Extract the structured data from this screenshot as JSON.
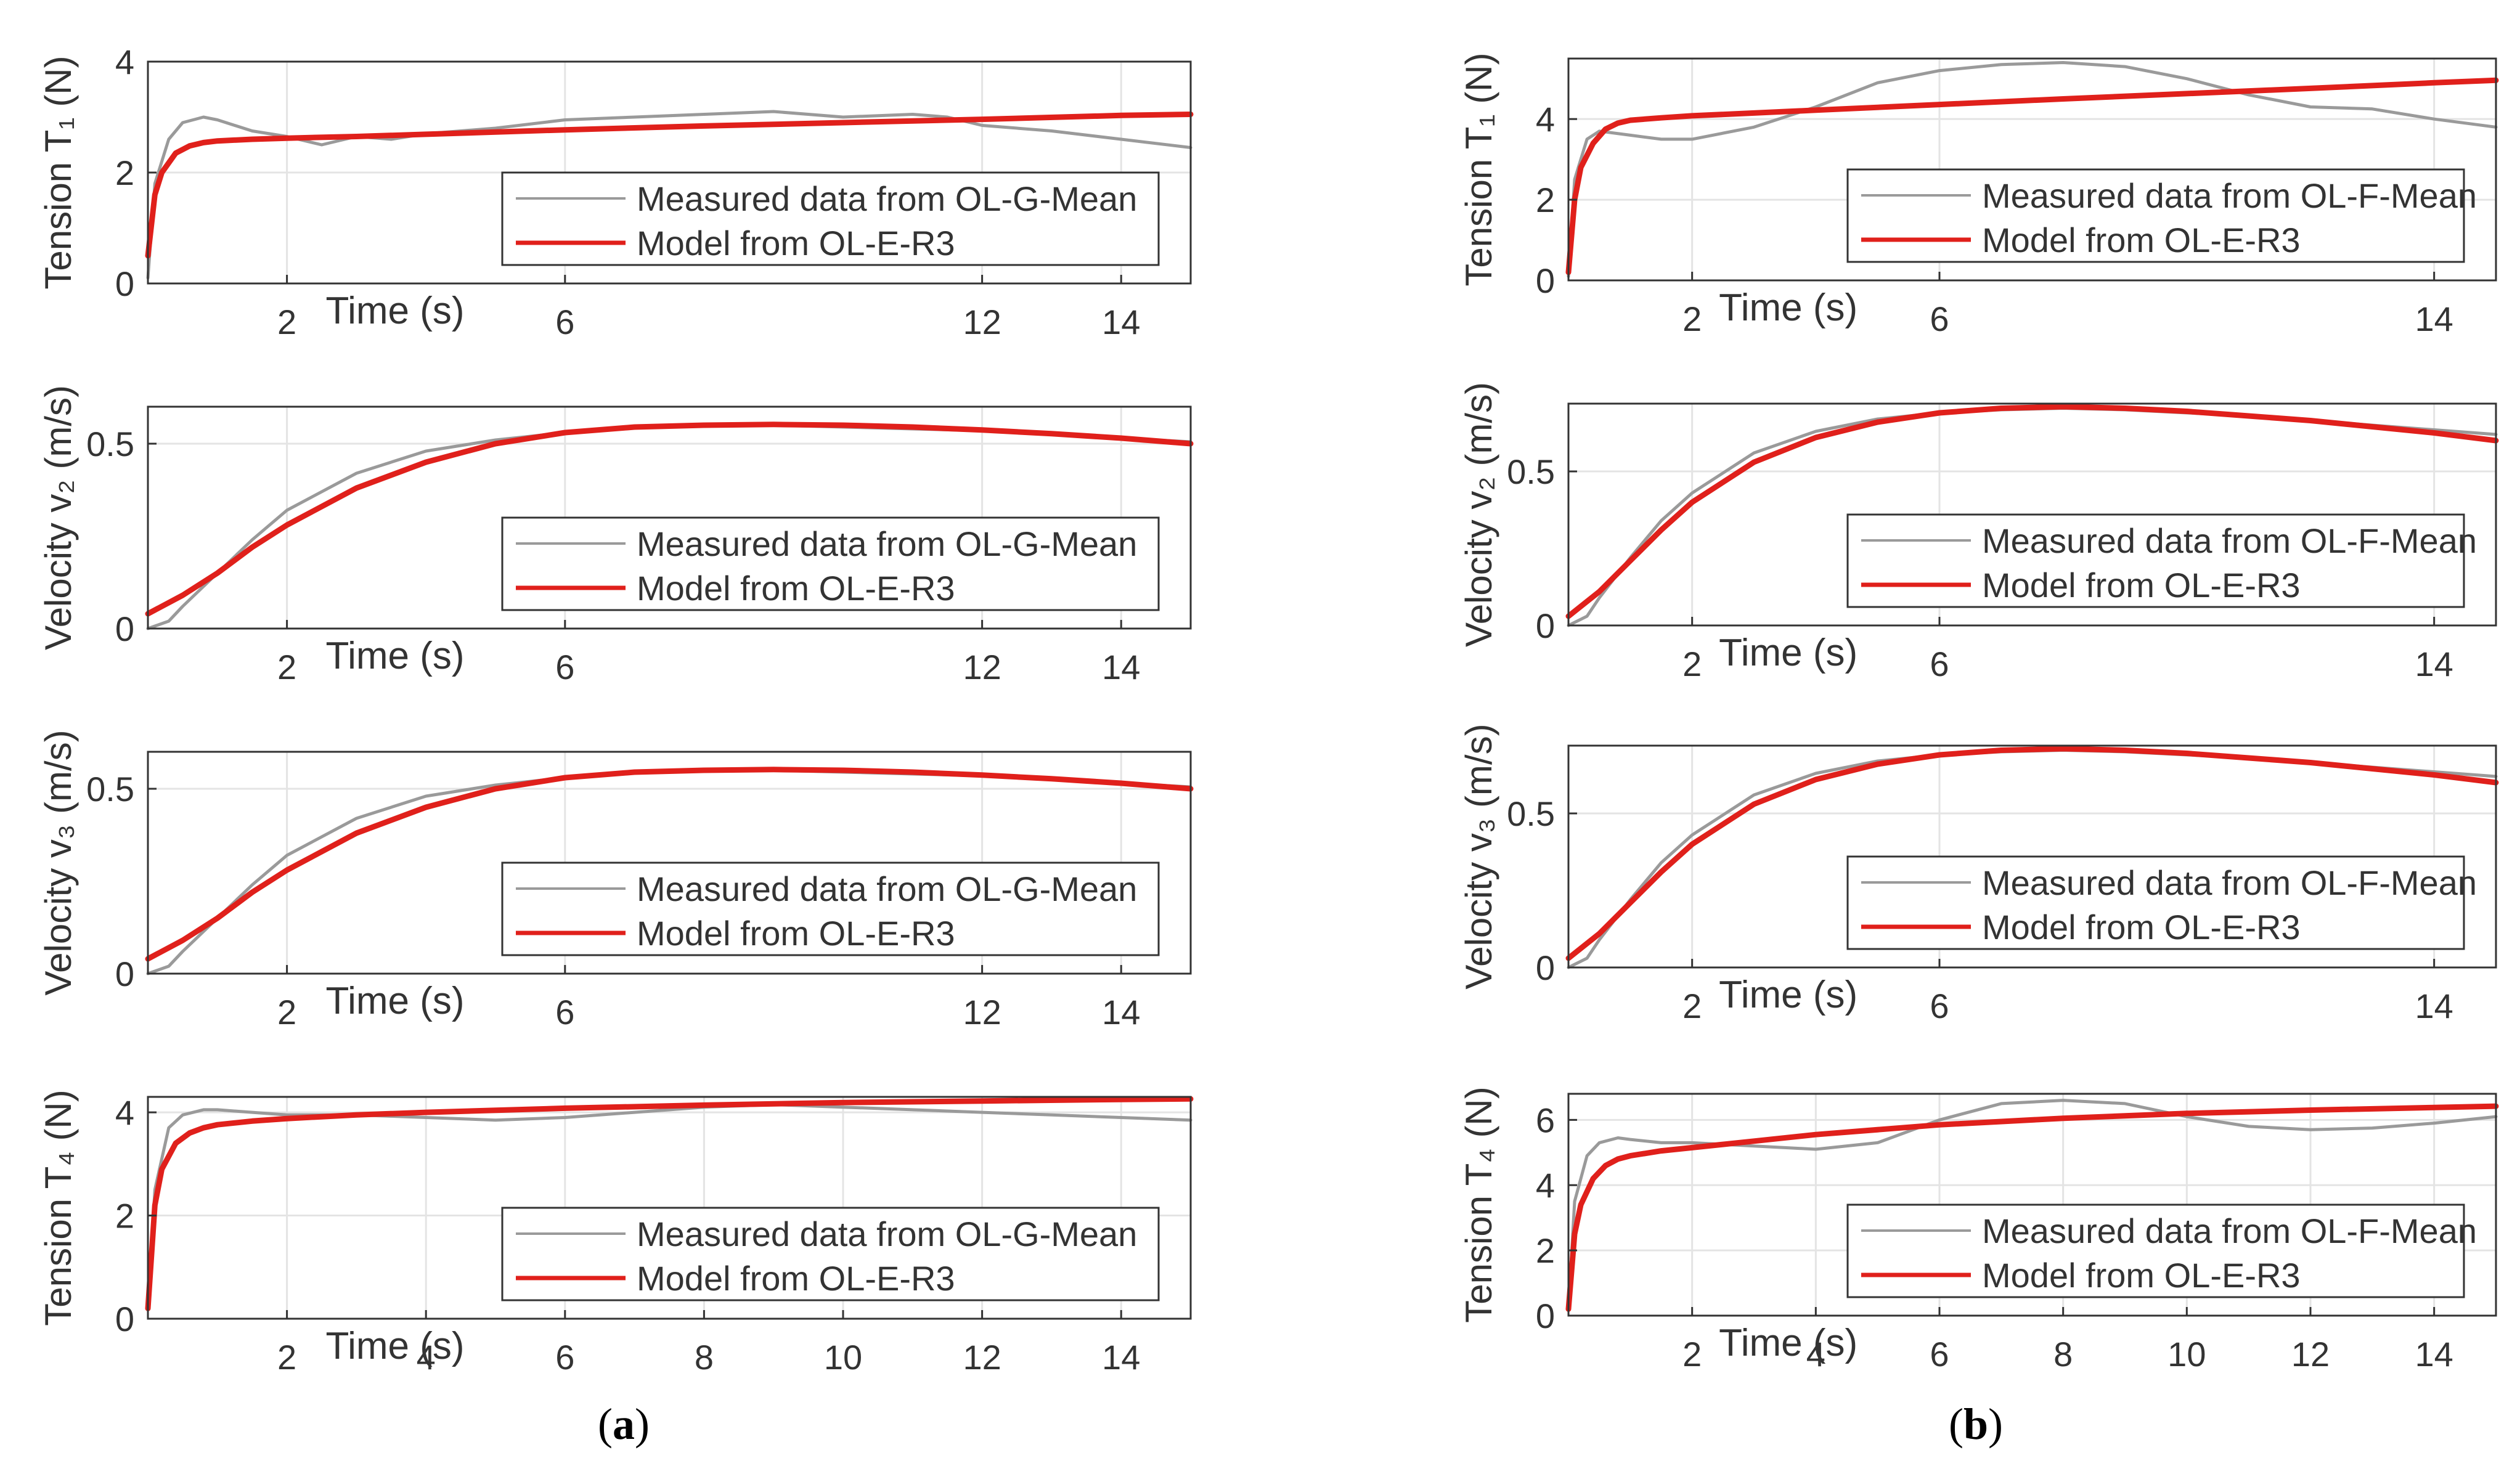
{
  "colors": {
    "measured": "#9a9a9a",
    "model": "#e0201b",
    "axis": "#333333",
    "grid": "#e4e4e4",
    "text": "#333333"
  },
  "panel_labels": {
    "a": "a",
    "b": "b"
  },
  "chart_data": [
    {
      "id": "a1",
      "type": "line",
      "ylabel": "Tension T₁ (N)",
      "xlabel": "Time (s)",
      "xlim": [
        0,
        15
      ],
      "ylim": [
        0,
        4
      ],
      "xticks": [
        2,
        6,
        12,
        14
      ],
      "yticks": [
        0,
        2,
        4
      ],
      "series": [
        {
          "name": "Measured data from OL-G-Mean",
          "x": [
            0,
            0.1,
            0.3,
            0.5,
            0.8,
            1.0,
            1.5,
            2.0,
            2.5,
            3.0,
            3.5,
            4.0,
            5.0,
            6.0,
            7.0,
            8.0,
            9.0,
            10.0,
            11.0,
            11.5,
            12.0,
            13.0,
            14.0,
            15.0
          ],
          "y": [
            0.1,
            1.8,
            2.6,
            2.9,
            3.0,
            2.95,
            2.75,
            2.65,
            2.5,
            2.65,
            2.6,
            2.7,
            2.8,
            2.95,
            3.0,
            3.05,
            3.1,
            3.0,
            3.05,
            3.0,
            2.85,
            2.75,
            2.6,
            2.45
          ]
        },
        {
          "name": "Model from OL-E-R3",
          "x": [
            0,
            0.1,
            0.2,
            0.4,
            0.6,
            0.8,
            1.0,
            1.5,
            2.0,
            3.0,
            4.0,
            6.0,
            8.0,
            10.0,
            12.0,
            14.0,
            15.0
          ],
          "y": [
            0.5,
            1.6,
            2.0,
            2.35,
            2.48,
            2.54,
            2.57,
            2.6,
            2.62,
            2.65,
            2.69,
            2.77,
            2.84,
            2.9,
            2.96,
            3.03,
            3.05
          ]
        }
      ]
    },
    {
      "id": "a2",
      "type": "line",
      "ylabel": "Velocity v₂ (m/s)",
      "xlabel": "Time (s)",
      "xlim": [
        0,
        15
      ],
      "ylim": [
        0,
        0.6
      ],
      "xticks": [
        2,
        6,
        12,
        14
      ],
      "yticks": [
        0,
        0.5
      ],
      "series": [
        {
          "name": "Measured data from OL-G-Mean",
          "x": [
            0,
            0.3,
            0.5,
            1.0,
            1.5,
            2.0,
            3.0,
            4.0,
            5.0,
            6.0,
            7.0,
            8.0,
            9.0,
            10.0,
            11.0,
            12.0,
            13.0,
            14.0,
            15.0
          ],
          "y": [
            0,
            0.02,
            0.06,
            0.15,
            0.24,
            0.32,
            0.42,
            0.48,
            0.51,
            0.53,
            0.545,
            0.55,
            0.55,
            0.545,
            0.54,
            0.535,
            0.525,
            0.515,
            0.505
          ]
        },
        {
          "name": "Model from OL-E-R3",
          "x": [
            0,
            0.5,
            1.0,
            1.5,
            2.0,
            3.0,
            4.0,
            5.0,
            6.0,
            7.0,
            8.0,
            9.0,
            10.0,
            11.0,
            12.0,
            13.0,
            14.0,
            15.0
          ],
          "y": [
            0.04,
            0.09,
            0.15,
            0.22,
            0.28,
            0.38,
            0.45,
            0.5,
            0.53,
            0.545,
            0.55,
            0.552,
            0.55,
            0.545,
            0.537,
            0.527,
            0.515,
            0.5
          ]
        }
      ]
    },
    {
      "id": "a3",
      "type": "line",
      "ylabel": "Velocity v₃ (m/s)",
      "xlabel": "Time (s)",
      "xlim": [
        0,
        15
      ],
      "ylim": [
        0,
        0.6
      ],
      "xticks": [
        2,
        6,
        12,
        14
      ],
      "yticks": [
        0,
        0.5
      ],
      "series": [
        {
          "name": "Measured data from OL-G-Mean",
          "x": [
            0,
            0.3,
            0.5,
            1.0,
            1.5,
            2.0,
            3.0,
            4.0,
            5.0,
            6.0,
            7.0,
            8.0,
            9.0,
            10.0,
            11.0,
            12.0,
            13.0,
            14.0,
            15.0
          ],
          "y": [
            0,
            0.02,
            0.06,
            0.15,
            0.24,
            0.32,
            0.42,
            0.48,
            0.51,
            0.53,
            0.545,
            0.55,
            0.55,
            0.545,
            0.54,
            0.535,
            0.525,
            0.515,
            0.505
          ]
        },
        {
          "name": "Model from OL-E-R3",
          "x": [
            0,
            0.5,
            1.0,
            1.5,
            2.0,
            3.0,
            4.0,
            5.0,
            6.0,
            7.0,
            8.0,
            9.0,
            10.0,
            11.0,
            12.0,
            13.0,
            14.0,
            15.0
          ],
          "y": [
            0.04,
            0.09,
            0.15,
            0.22,
            0.28,
            0.38,
            0.45,
            0.5,
            0.53,
            0.545,
            0.55,
            0.552,
            0.55,
            0.545,
            0.537,
            0.527,
            0.515,
            0.5
          ]
        }
      ]
    },
    {
      "id": "a4",
      "type": "line",
      "ylabel": "Tension T₄ (N)",
      "xlabel": "Time (s)",
      "xlim": [
        0,
        15
      ],
      "ylim": [
        0,
        4.3
      ],
      "xticks": [
        2,
        4,
        6,
        8,
        10,
        12,
        14
      ],
      "yticks": [
        0,
        2,
        4
      ],
      "series": [
        {
          "name": "Measured data from OL-G-Mean",
          "x": [
            0,
            0.1,
            0.3,
            0.5,
            0.8,
            1.0,
            1.5,
            2.0,
            3.0,
            4.0,
            5.0,
            6.0,
            7.0,
            8.0,
            9.0,
            10.0,
            11.0,
            12.0,
            13.0,
            14.0,
            15.0
          ],
          "y": [
            0.2,
            2.5,
            3.7,
            3.95,
            4.05,
            4.05,
            4.0,
            3.95,
            3.95,
            3.9,
            3.85,
            3.9,
            4.0,
            4.1,
            4.15,
            4.1,
            4.05,
            4.0,
            3.95,
            3.9,
            3.85
          ]
        },
        {
          "name": "Model from OL-E-R3",
          "x": [
            0,
            0.1,
            0.2,
            0.4,
            0.6,
            0.8,
            1.0,
            1.5,
            2.0,
            3.0,
            4.0,
            6.0,
            8.0,
            10.0,
            12.0,
            14.0,
            15.0
          ],
          "y": [
            0.2,
            2.2,
            2.9,
            3.4,
            3.6,
            3.7,
            3.76,
            3.83,
            3.88,
            3.95,
            4.0,
            4.08,
            4.14,
            4.19,
            4.22,
            4.25,
            4.26
          ]
        }
      ]
    },
    {
      "id": "b1",
      "type": "line",
      "ylabel": "Tension T₁ (N)",
      "xlabel": "Time (s)",
      "xlim": [
        0,
        15
      ],
      "ylim": [
        0,
        5.5
      ],
      "xticks": [
        2,
        6,
        14
      ],
      "yticks": [
        0,
        2,
        4
      ],
      "series": [
        {
          "name": "Measured data from OL-F-Mean",
          "x": [
            0,
            0.1,
            0.3,
            0.5,
            1.0,
            1.5,
            2.0,
            3.0,
            4.0,
            5.0,
            6.0,
            7.0,
            8.0,
            9.0,
            10.0,
            11.0,
            12.0,
            13.0,
            14.0,
            15.0
          ],
          "y": [
            0.1,
            2.5,
            3.5,
            3.7,
            3.6,
            3.5,
            3.5,
            3.8,
            4.3,
            4.9,
            5.2,
            5.35,
            5.4,
            5.3,
            5.0,
            4.6,
            4.3,
            4.25,
            4.0,
            3.8
          ]
        },
        {
          "name": "Model from OL-E-R3",
          "x": [
            0,
            0.1,
            0.2,
            0.4,
            0.6,
            0.8,
            1.0,
            1.5,
            2.0,
            3.0,
            4.0,
            6.0,
            8.0,
            10.0,
            12.0,
            14.0,
            15.0
          ],
          "y": [
            0.2,
            2.0,
            2.8,
            3.4,
            3.75,
            3.9,
            3.97,
            4.03,
            4.08,
            4.15,
            4.22,
            4.36,
            4.5,
            4.63,
            4.76,
            4.9,
            4.96
          ]
        }
      ]
    },
    {
      "id": "b2",
      "type": "line",
      "ylabel": "Velocity v₂ (m/s)",
      "xlabel": "Time (s)",
      "xlim": [
        0,
        15
      ],
      "ylim": [
        0,
        0.72
      ],
      "xticks": [
        2,
        6,
        14
      ],
      "yticks": [
        0,
        0.5
      ],
      "series": [
        {
          "name": "Measured data from OL-F-Mean",
          "x": [
            0,
            0.3,
            0.5,
            1.0,
            1.5,
            2.0,
            3.0,
            4.0,
            5.0,
            6.0,
            7.0,
            8.0,
            9.0,
            10.0,
            11.0,
            12.0,
            13.0,
            14.0,
            15.0
          ],
          "y": [
            0,
            0.03,
            0.09,
            0.22,
            0.34,
            0.43,
            0.56,
            0.63,
            0.67,
            0.69,
            0.7,
            0.705,
            0.7,
            0.69,
            0.68,
            0.665,
            0.65,
            0.635,
            0.62
          ]
        },
        {
          "name": "Model from OL-E-R3",
          "x": [
            0,
            0.5,
            1.0,
            1.5,
            2.0,
            3.0,
            4.0,
            5.0,
            6.0,
            7.0,
            8.0,
            9.0,
            10.0,
            11.0,
            12.0,
            13.0,
            14.0,
            15.0
          ],
          "y": [
            0.03,
            0.11,
            0.21,
            0.31,
            0.4,
            0.53,
            0.61,
            0.66,
            0.69,
            0.705,
            0.71,
            0.705,
            0.695,
            0.68,
            0.665,
            0.645,
            0.625,
            0.6
          ]
        }
      ]
    },
    {
      "id": "b3",
      "type": "line",
      "ylabel": "Velocity v₃ (m/s)",
      "xlabel": "Time (s)",
      "xlim": [
        0,
        15
      ],
      "ylim": [
        0,
        0.72
      ],
      "xticks": [
        2,
        6,
        14
      ],
      "yticks": [
        0,
        0.5
      ],
      "series": [
        {
          "name": "Measured data from OL-F-Mean",
          "x": [
            0,
            0.3,
            0.5,
            1.0,
            1.5,
            2.0,
            3.0,
            4.0,
            5.0,
            6.0,
            7.0,
            8.0,
            9.0,
            10.0,
            11.0,
            12.0,
            13.0,
            14.0,
            15.0
          ],
          "y": [
            0,
            0.03,
            0.09,
            0.22,
            0.34,
            0.43,
            0.56,
            0.63,
            0.67,
            0.69,
            0.7,
            0.705,
            0.7,
            0.69,
            0.68,
            0.665,
            0.65,
            0.635,
            0.62
          ]
        },
        {
          "name": "Model from OL-E-R3",
          "x": [
            0,
            0.5,
            1.0,
            1.5,
            2.0,
            3.0,
            4.0,
            5.0,
            6.0,
            7.0,
            8.0,
            9.0,
            10.0,
            11.0,
            12.0,
            13.0,
            14.0,
            15.0
          ],
          "y": [
            0.03,
            0.11,
            0.21,
            0.31,
            0.4,
            0.53,
            0.61,
            0.66,
            0.69,
            0.705,
            0.71,
            0.705,
            0.695,
            0.68,
            0.665,
            0.645,
            0.625,
            0.6
          ]
        }
      ]
    },
    {
      "id": "b4",
      "type": "line",
      "ylabel": "Tension T₄ (N)",
      "xlabel": "Time (s)",
      "xlim": [
        0,
        15
      ],
      "ylim": [
        0,
        6.8
      ],
      "xticks": [
        2,
        4,
        6,
        8,
        10,
        12,
        14
      ],
      "yticks": [
        0,
        2,
        4,
        6
      ],
      "series": [
        {
          "name": "Measured data from OL-F-Mean",
          "x": [
            0,
            0.1,
            0.3,
            0.5,
            0.8,
            1.0,
            1.5,
            2.0,
            3.0,
            4.0,
            5.0,
            6.0,
            7.0,
            8.0,
            9.0,
            10.0,
            11.0,
            12.0,
            13.0,
            14.0,
            15.0
          ],
          "y": [
            0.2,
            3.5,
            4.9,
            5.3,
            5.45,
            5.4,
            5.3,
            5.3,
            5.2,
            5.1,
            5.3,
            6.0,
            6.5,
            6.6,
            6.5,
            6.1,
            5.8,
            5.7,
            5.75,
            5.9,
            6.1
          ]
        },
        {
          "name": "Model from OL-E-R3",
          "x": [
            0,
            0.1,
            0.2,
            0.4,
            0.6,
            0.8,
            1.0,
            1.5,
            2.0,
            3.0,
            4.0,
            6.0,
            8.0,
            10.0,
            12.0,
            14.0,
            15.0
          ],
          "y": [
            0.2,
            2.5,
            3.4,
            4.2,
            4.6,
            4.8,
            4.9,
            5.05,
            5.15,
            5.35,
            5.55,
            5.85,
            6.05,
            6.2,
            6.3,
            6.38,
            6.42
          ]
        }
      ]
    }
  ]
}
